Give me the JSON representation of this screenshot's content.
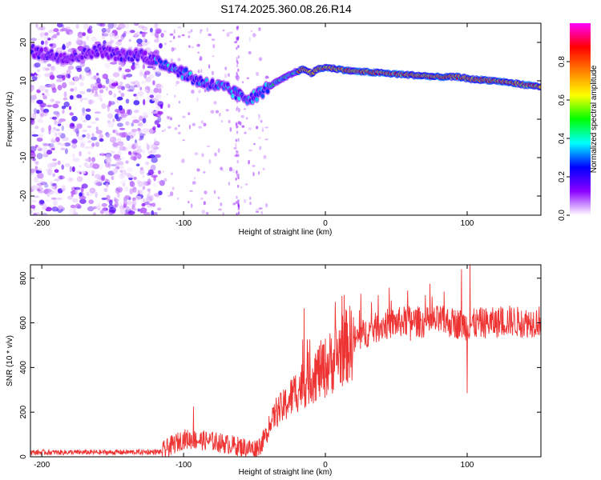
{
  "title": "S174.2025.360.08.26.R14",
  "chart_data": [
    {
      "type": "heatmap",
      "title": "S174.2025.360.08.26.R14",
      "xlabel": "Height of straight line (km)",
      "ylabel": "Frequency (Hz)",
      "xlim": [
        -208,
        152
      ],
      "ylim": [
        -25,
        25
      ],
      "xticks": [
        -200,
        -100,
        0,
        100
      ],
      "yticks": [
        -20,
        -10,
        0,
        10,
        20
      ],
      "colorbar": {
        "label": "Normalized spectral amplitude",
        "range": [
          0,
          1
        ],
        "ticks": [
          0.0,
          0.2,
          0.4,
          0.6,
          0.8
        ],
        "tick_labels": [
          "0.0",
          "0.2",
          "0.4",
          "0.6",
          "0.8"
        ],
        "colors": [
          "#ffffff",
          "#8b00ff",
          "#0000ff",
          "#00ffff",
          "#00ff00",
          "#ffff00",
          "#ff8000",
          "#ff0000",
          "#ff00ff"
        ]
      },
      "ridge": {
        "x": [
          -208,
          -200,
          -190,
          -180,
          -170,
          -160,
          -150,
          -140,
          -130,
          -120,
          -110,
          -100,
          -90,
          -80,
          -70,
          -60,
          -55,
          -50,
          -45,
          -40,
          -35,
          -30,
          -25,
          -20,
          -15,
          -10,
          -5,
          0,
          10,
          20,
          40,
          60,
          80,
          95,
          100,
          120,
          140,
          152
        ],
        "y": [
          18,
          17,
          16.5,
          16,
          17,
          18,
          17,
          16.5,
          17,
          15,
          14,
          12,
          10,
          9,
          8,
          6,
          5.5,
          6,
          7,
          8.5,
          9.5,
          10.5,
          11.5,
          12.5,
          13,
          12,
          13,
          13.5,
          13,
          12.5,
          12,
          11.5,
          11,
          11,
          10.5,
          10,
          9,
          8.5
        ]
      },
      "noise_region_x": [
        -208,
        -115
      ],
      "scatter_region_x": [
        -115,
        -40
      ]
    },
    {
      "type": "line",
      "xlabel": "Height of straight line (km)",
      "ylabel": "SNR (10 * v/v)",
      "xlim": [
        -208,
        152
      ],
      "ylim": [
        0,
        860
      ],
      "xticks": [
        -200,
        -100,
        0,
        100
      ],
      "yticks": [
        0,
        200,
        400,
        600,
        800
      ],
      "series": [
        {
          "name": "SNR",
          "color": "#ee3333",
          "envelope_x": [
            -208,
            -150,
            -115,
            -110,
            -100,
            -80,
            -60,
            -50,
            -45,
            -40,
            -35,
            -30,
            -25,
            -20,
            -15,
            -10,
            -5,
            0,
            5,
            10,
            20,
            30,
            40,
            50,
            60,
            70,
            80,
            90,
            100,
            110,
            120,
            130,
            140,
            152
          ],
          "envelope_y": [
            20,
            20,
            22,
            45,
            80,
            70,
            45,
            35,
            60,
            120,
            200,
            220,
            260,
            300,
            330,
            360,
            380,
            400,
            430,
            470,
            520,
            560,
            590,
            600,
            610,
            600,
            610,
            600,
            590,
            600,
            600,
            610,
            600,
            610
          ],
          "spikes": [
            {
              "x": -93,
              "y": 225
            },
            {
              "x": -15,
              "y": 665
            },
            {
              "x": 25,
              "y": 730
            },
            {
              "x": 58,
              "y": 745
            },
            {
              "x": 96,
              "y": 840
            },
            {
              "x": 102,
              "y": 860
            },
            {
              "x": 100,
              "y": 285
            },
            {
              "x": 60,
              "y": 520
            }
          ]
        }
      ]
    }
  ]
}
